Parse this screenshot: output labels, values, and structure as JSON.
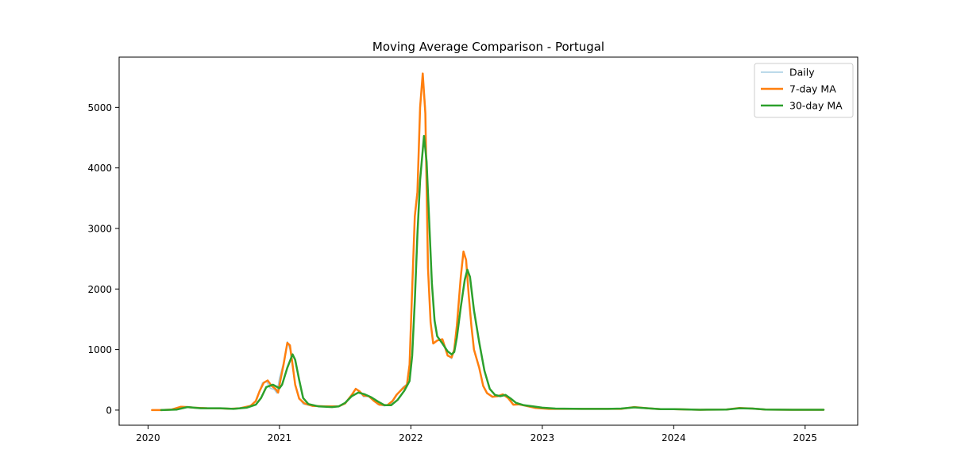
{
  "chart_data": {
    "type": "line",
    "title": "Moving Average Comparison - Portugal",
    "xlabel": "",
    "ylabel": "",
    "xlim": [
      2019.78,
      2025.4
    ],
    "ylim": [
      -250,
      5830
    ],
    "x_ticks": [
      "2020",
      "2021",
      "2022",
      "2023",
      "2024",
      "2025"
    ],
    "y_ticks": [
      0,
      1000,
      2000,
      3000,
      4000,
      5000
    ],
    "grid": false,
    "legend_position": "top-right",
    "series": [
      {
        "name": "Daily",
        "color": "#a6cee3",
        "style": "thin",
        "points": [
          [
            2020.03,
            0
          ],
          [
            2020.1,
            0
          ],
          [
            2020.2,
            15
          ],
          [
            2020.26,
            60
          ],
          [
            2020.3,
            50
          ],
          [
            2020.35,
            40
          ],
          [
            2020.45,
            30
          ],
          [
            2020.55,
            25
          ],
          [
            2020.62,
            20
          ],
          [
            2020.7,
            30
          ],
          [
            2020.78,
            70
          ],
          [
            2020.82,
            150
          ],
          [
            2020.85,
            330
          ],
          [
            2020.87,
            450
          ],
          [
            2020.9,
            480
          ],
          [
            2020.93,
            360
          ],
          [
            2020.96,
            340
          ],
          [
            2020.98,
            280
          ],
          [
            2021.0,
            530
          ],
          [
            2021.03,
            780
          ],
          [
            2021.06,
            1130
          ],
          [
            2021.08,
            1000
          ],
          [
            2021.1,
            700
          ],
          [
            2021.12,
            400
          ],
          [
            2021.15,
            200
          ],
          [
            2021.18,
            100
          ],
          [
            2021.22,
            80
          ],
          [
            2021.3,
            60
          ],
          [
            2021.4,
            50
          ],
          [
            2021.45,
            60
          ],
          [
            2021.5,
            120
          ],
          [
            2021.55,
            250
          ],
          [
            2021.58,
            360
          ],
          [
            2021.61,
            300
          ],
          [
            2021.64,
            220
          ],
          [
            2021.68,
            230
          ],
          [
            2021.72,
            150
          ],
          [
            2021.75,
            90
          ],
          [
            2021.8,
            70
          ],
          [
            2021.85,
            100
          ],
          [
            2021.88,
            200
          ],
          [
            2021.91,
            300
          ],
          [
            2021.94,
            380
          ],
          [
            2021.97,
            430
          ],
          [
            2021.99,
            780
          ],
          [
            2022.0,
            1500
          ],
          [
            2022.01,
            2050
          ],
          [
            2022.03,
            3250
          ],
          [
            2022.05,
            3650
          ],
          [
            2022.07,
            5050
          ],
          [
            2022.09,
            5560
          ],
          [
            2022.11,
            5000
          ],
          [
            2022.13,
            2330
          ],
          [
            2022.15,
            1450
          ],
          [
            2022.17,
            1100
          ],
          [
            2022.2,
            1150
          ],
          [
            2022.24,
            1170
          ],
          [
            2022.28,
            900
          ],
          [
            2022.31,
            850
          ],
          [
            2022.33,
            1000
          ],
          [
            2022.35,
            1400
          ],
          [
            2022.38,
            2200
          ],
          [
            2022.4,
            2620
          ],
          [
            2022.42,
            2480
          ],
          [
            2022.44,
            1900
          ],
          [
            2022.46,
            1380
          ],
          [
            2022.48,
            1000
          ],
          [
            2022.52,
            700
          ],
          [
            2022.55,
            400
          ],
          [
            2022.58,
            280
          ],
          [
            2022.62,
            210
          ],
          [
            2022.65,
            230
          ],
          [
            2022.7,
            250
          ],
          [
            2022.75,
            200
          ],
          [
            2022.78,
            90
          ],
          [
            2022.82,
            100
          ],
          [
            2022.88,
            60
          ],
          [
            2022.95,
            30
          ],
          [
            2023.05,
            20
          ],
          [
            2023.2,
            20
          ],
          [
            2023.4,
            20
          ],
          [
            2023.6,
            20
          ],
          [
            2023.7,
            50
          ],
          [
            2023.8,
            30
          ],
          [
            2023.9,
            15
          ],
          [
            2024.0,
            15
          ],
          [
            2024.2,
            5
          ],
          [
            2024.4,
            10
          ],
          [
            2024.5,
            35
          ],
          [
            2024.6,
            25
          ],
          [
            2024.7,
            10
          ],
          [
            2024.9,
            5
          ],
          [
            2025.14,
            5
          ]
        ]
      },
      {
        "name": "7-day MA",
        "color": "#ff7f0e",
        "style": "thick",
        "points": [
          [
            2020.03,
            0
          ],
          [
            2020.1,
            0
          ],
          [
            2020.18,
            10
          ],
          [
            2020.25,
            55
          ],
          [
            2020.3,
            50
          ],
          [
            2020.35,
            40
          ],
          [
            2020.45,
            30
          ],
          [
            2020.55,
            28
          ],
          [
            2020.63,
            22
          ],
          [
            2020.7,
            30
          ],
          [
            2020.78,
            70
          ],
          [
            2020.82,
            150
          ],
          [
            2020.85,
            320
          ],
          [
            2020.88,
            450
          ],
          [
            2020.91,
            490
          ],
          [
            2020.94,
            400
          ],
          [
            2020.97,
            350
          ],
          [
            2020.99,
            290
          ],
          [
            2021.01,
            520
          ],
          [
            2021.03,
            740
          ],
          [
            2021.06,
            1110
          ],
          [
            2021.08,
            1070
          ],
          [
            2021.1,
            750
          ],
          [
            2021.12,
            420
          ],
          [
            2021.15,
            190
          ],
          [
            2021.19,
            110
          ],
          [
            2021.25,
            70
          ],
          [
            2021.35,
            60
          ],
          [
            2021.45,
            60
          ],
          [
            2021.5,
            110
          ],
          [
            2021.55,
            250
          ],
          [
            2021.58,
            350
          ],
          [
            2021.61,
            310
          ],
          [
            2021.64,
            240
          ],
          [
            2021.68,
            230
          ],
          [
            2021.72,
            150
          ],
          [
            2021.76,
            90
          ],
          [
            2021.82,
            80
          ],
          [
            2021.86,
            150
          ],
          [
            2021.89,
            250
          ],
          [
            2021.93,
            340
          ],
          [
            2021.97,
            420
          ],
          [
            2021.99,
            750
          ],
          [
            2022.0,
            1400
          ],
          [
            2022.01,
            2000
          ],
          [
            2022.03,
            3200
          ],
          [
            2022.05,
            3600
          ],
          [
            2022.07,
            5000
          ],
          [
            2022.09,
            5560
          ],
          [
            2022.11,
            4900
          ],
          [
            2022.13,
            2350
          ],
          [
            2022.15,
            1450
          ],
          [
            2022.17,
            1100
          ],
          [
            2022.2,
            1150
          ],
          [
            2022.24,
            1170
          ],
          [
            2022.28,
            900
          ],
          [
            2022.31,
            870
          ],
          [
            2022.33,
            1000
          ],
          [
            2022.35,
            1400
          ],
          [
            2022.38,
            2200
          ],
          [
            2022.4,
            2620
          ],
          [
            2022.42,
            2480
          ],
          [
            2022.44,
            1900
          ],
          [
            2022.46,
            1400
          ],
          [
            2022.48,
            1000
          ],
          [
            2022.52,
            700
          ],
          [
            2022.55,
            400
          ],
          [
            2022.58,
            280
          ],
          [
            2022.62,
            220
          ],
          [
            2022.66,
            230
          ],
          [
            2022.7,
            260
          ],
          [
            2022.74,
            200
          ],
          [
            2022.78,
            90
          ],
          [
            2022.82,
            95
          ],
          [
            2022.88,
            70
          ],
          [
            2022.95,
            35
          ],
          [
            2023.05,
            20
          ],
          [
            2023.2,
            20
          ],
          [
            2023.4,
            20
          ],
          [
            2023.6,
            20
          ],
          [
            2023.7,
            50
          ],
          [
            2023.8,
            30
          ],
          [
            2023.9,
            15
          ],
          [
            2024.0,
            15
          ],
          [
            2024.2,
            5
          ],
          [
            2024.4,
            10
          ],
          [
            2024.5,
            35
          ],
          [
            2024.6,
            25
          ],
          [
            2024.7,
            10
          ],
          [
            2024.9,
            5
          ],
          [
            2025.14,
            5
          ]
        ]
      },
      {
        "name": "30-day MA",
        "color": "#2ca02c",
        "style": "thick",
        "points": [
          [
            2020.1,
            0
          ],
          [
            2020.22,
            10
          ],
          [
            2020.3,
            50
          ],
          [
            2020.4,
            30
          ],
          [
            2020.55,
            30
          ],
          [
            2020.65,
            20
          ],
          [
            2020.75,
            40
          ],
          [
            2020.82,
            90
          ],
          [
            2020.86,
            200
          ],
          [
            2020.9,
            380
          ],
          [
            2020.95,
            420
          ],
          [
            2021.0,
            360
          ],
          [
            2021.02,
            420
          ],
          [
            2021.06,
            700
          ],
          [
            2021.1,
            920
          ],
          [
            2021.12,
            830
          ],
          [
            2021.15,
            500
          ],
          [
            2021.18,
            200
          ],
          [
            2021.22,
            100
          ],
          [
            2021.3,
            60
          ],
          [
            2021.4,
            50
          ],
          [
            2021.45,
            60
          ],
          [
            2021.5,
            120
          ],
          [
            2021.55,
            230
          ],
          [
            2021.6,
            290
          ],
          [
            2021.65,
            260
          ],
          [
            2021.7,
            210
          ],
          [
            2021.75,
            140
          ],
          [
            2021.8,
            80
          ],
          [
            2021.85,
            80
          ],
          [
            2021.9,
            170
          ],
          [
            2021.95,
            320
          ],
          [
            2021.99,
            480
          ],
          [
            2022.01,
            900
          ],
          [
            2022.03,
            1800
          ],
          [
            2022.05,
            2900
          ],
          [
            2022.07,
            3800
          ],
          [
            2022.1,
            4530
          ],
          [
            2022.12,
            4100
          ],
          [
            2022.14,
            3100
          ],
          [
            2022.16,
            2100
          ],
          [
            2022.18,
            1480
          ],
          [
            2022.2,
            1220
          ],
          [
            2022.24,
            1100
          ],
          [
            2022.28,
            970
          ],
          [
            2022.31,
            920
          ],
          [
            2022.33,
            960
          ],
          [
            2022.35,
            1200
          ],
          [
            2022.38,
            1700
          ],
          [
            2022.41,
            2150
          ],
          [
            2022.43,
            2320
          ],
          [
            2022.45,
            2200
          ],
          [
            2022.48,
            1650
          ],
          [
            2022.52,
            1120
          ],
          [
            2022.56,
            650
          ],
          [
            2022.6,
            350
          ],
          [
            2022.64,
            250
          ],
          [
            2022.68,
            230
          ],
          [
            2022.72,
            250
          ],
          [
            2022.76,
            190
          ],
          [
            2022.8,
            120
          ],
          [
            2022.86,
            80
          ],
          [
            2022.93,
            60
          ],
          [
            2023.0,
            40
          ],
          [
            2023.1,
            25
          ],
          [
            2023.3,
            20
          ],
          [
            2023.5,
            20
          ],
          [
            2023.6,
            25
          ],
          [
            2023.7,
            45
          ],
          [
            2023.8,
            30
          ],
          [
            2023.9,
            15
          ],
          [
            2024.0,
            15
          ],
          [
            2024.2,
            5
          ],
          [
            2024.4,
            10
          ],
          [
            2024.5,
            30
          ],
          [
            2024.6,
            25
          ],
          [
            2024.7,
            10
          ],
          [
            2024.9,
            5
          ],
          [
            2025.14,
            5
          ]
        ]
      }
    ]
  }
}
